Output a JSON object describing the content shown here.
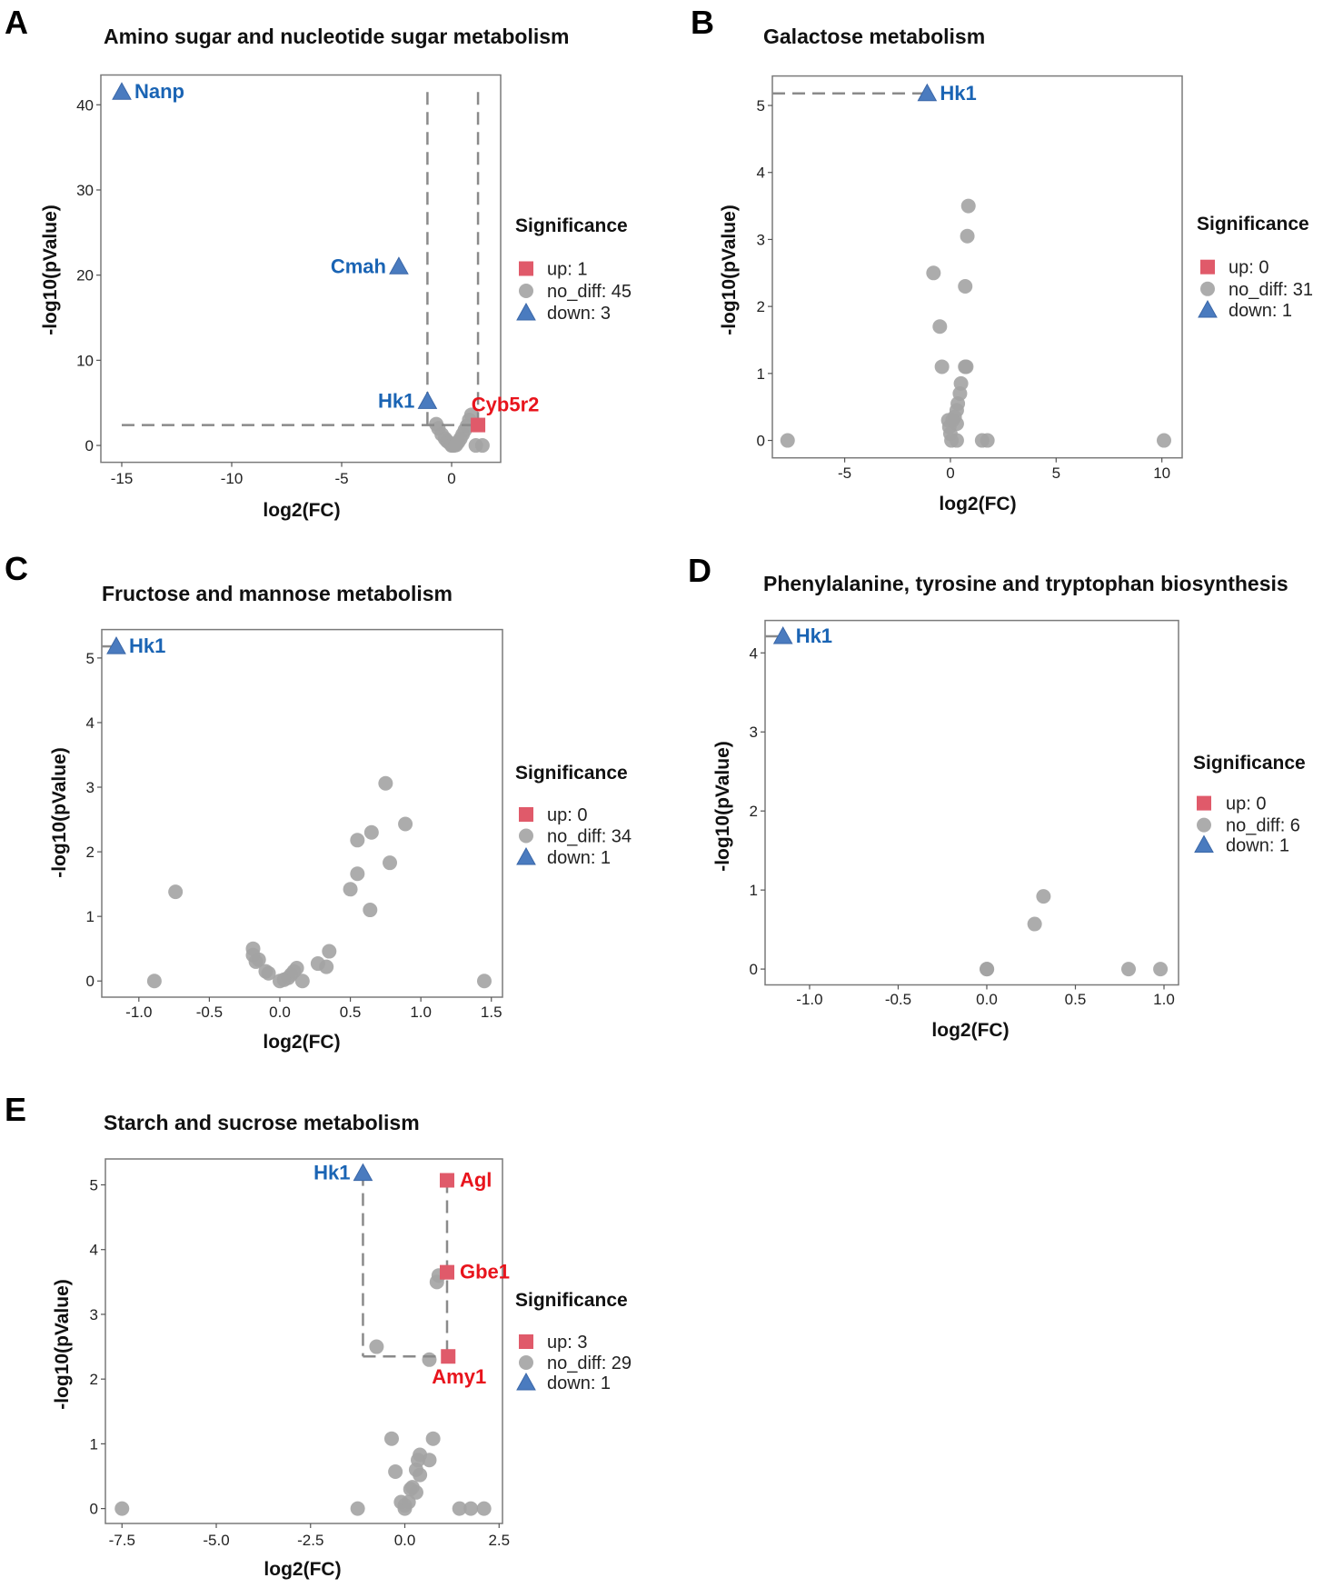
{
  "colors": {
    "up": "#e05a6a",
    "up_label": "#e8141c",
    "down": "#4a7bbf",
    "down_label": "#1a64b4",
    "no_diff": "#a3a3a3",
    "ref_line": "#8a8a8a"
  },
  "chart_data": [
    {
      "panel": "A",
      "type": "scatter",
      "title": "Amino sugar and nucleotide sugar metabolism",
      "xlabel": "log2(FC)",
      "ylabel": "-log10(pValue)",
      "xlim": [
        -15.95,
        2.23
      ],
      "ylim": [
        -1.98,
        43.5
      ],
      "xticks": [
        "-15",
        "-10",
        "-5",
        "0"
      ],
      "yticks": [
        "0",
        "10",
        "20",
        "30",
        "40"
      ],
      "legend": {
        "title": "Significance",
        "items": [
          "up: 1",
          "no_diff: 45",
          "down: 3"
        ]
      },
      "ref_lines": [
        [
          [
            -15,
            2.4
          ],
          [
            1.2,
            2.4
          ]
        ],
        [
          [
            -1.1,
            41.5
          ],
          [
            -1.1,
            2.4
          ]
        ],
        [
          [
            1.2,
            41.5
          ],
          [
            1.2,
            2.4
          ]
        ]
      ],
      "points": [
        {
          "x": -15,
          "y": 41.5,
          "group": "down",
          "label": "Nanp",
          "label_pos": "right"
        },
        {
          "x": -2.4,
          "y": 21,
          "group": "down",
          "label": "Cmah",
          "label_pos": "left"
        },
        {
          "x": -1.1,
          "y": 5.2,
          "group": "down",
          "label": "Hk1",
          "label_pos": "left"
        },
        {
          "x": 1.2,
          "y": 2.4,
          "group": "up",
          "label": "Cyb5r2",
          "label_pos": "above"
        },
        {
          "x": -0.7,
          "y": 2.5,
          "group": "no_diff"
        },
        {
          "x": -0.6,
          "y": 2.0,
          "group": "no_diff"
        },
        {
          "x": -0.45,
          "y": 1.3,
          "group": "no_diff"
        },
        {
          "x": -0.3,
          "y": 0.8,
          "group": "no_diff"
        },
        {
          "x": -0.2,
          "y": 0.5,
          "group": "no_diff"
        },
        {
          "x": -0.1,
          "y": 0.3,
          "group": "no_diff"
        },
        {
          "x": 0,
          "y": 0.1,
          "group": "no_diff"
        },
        {
          "x": 0,
          "y": 0,
          "group": "no_diff"
        },
        {
          "x": 0.1,
          "y": 0,
          "group": "no_diff"
        },
        {
          "x": 0.2,
          "y": 0.2,
          "group": "no_diff"
        },
        {
          "x": 0.3,
          "y": 0.4,
          "group": "no_diff"
        },
        {
          "x": 0.4,
          "y": 0.8,
          "group": "no_diff"
        },
        {
          "x": 0.5,
          "y": 1.3,
          "group": "no_diff"
        },
        {
          "x": 0.6,
          "y": 1.8,
          "group": "no_diff"
        },
        {
          "x": 0.7,
          "y": 2.3,
          "group": "no_diff"
        },
        {
          "x": 0.8,
          "y": 3.0,
          "group": "no_diff"
        },
        {
          "x": 0.9,
          "y": 3.6,
          "group": "no_diff"
        },
        {
          "x": 1.1,
          "y": 0,
          "group": "no_diff"
        },
        {
          "x": 1.4,
          "y": 0,
          "group": "no_diff"
        },
        {
          "x": 0.2,
          "y": 0.05,
          "group": "no_diff"
        }
      ]
    },
    {
      "panel": "B",
      "type": "scatter",
      "title": "Galactose metabolism",
      "xlabel": "log2(FC)",
      "ylabel": "-log10(pValue)",
      "xlim": [
        -8.42,
        10.96
      ],
      "ylim": [
        -0.26,
        5.44
      ],
      "xticks": [
        "-5",
        "0",
        "5",
        "10"
      ],
      "yticks": [
        "0",
        "1",
        "2",
        "3",
        "4",
        "5"
      ],
      "legend": {
        "title": "Significance",
        "items": [
          "up: 0",
          "no_diff: 31",
          "down: 1"
        ]
      },
      "ref_lines": [
        [
          [
            -8.42,
            5.18
          ],
          [
            -1.1,
            5.18
          ]
        ]
      ],
      "points": [
        {
          "x": -1.1,
          "y": 5.18,
          "group": "down",
          "label": "Hk1",
          "label_pos": "right"
        },
        {
          "x": -7.7,
          "y": 0,
          "group": "no_diff"
        },
        {
          "x": 0.85,
          "y": 3.5,
          "group": "no_diff"
        },
        {
          "x": 0.8,
          "y": 3.05,
          "group": "no_diff"
        },
        {
          "x": -0.8,
          "y": 2.5,
          "group": "no_diff"
        },
        {
          "x": 0.7,
          "y": 2.3,
          "group": "no_diff"
        },
        {
          "x": -0.5,
          "y": 1.7,
          "group": "no_diff"
        },
        {
          "x": -0.4,
          "y": 1.1,
          "group": "no_diff"
        },
        {
          "x": 0.7,
          "y": 1.1,
          "group": "no_diff"
        },
        {
          "x": 0.75,
          "y": 1.1,
          "group": "no_diff"
        },
        {
          "x": 0.5,
          "y": 0.85,
          "group": "no_diff"
        },
        {
          "x": 0.45,
          "y": 0.7,
          "group": "no_diff"
        },
        {
          "x": 0.35,
          "y": 0.55,
          "group": "no_diff"
        },
        {
          "x": 0.3,
          "y": 0.45,
          "group": "no_diff"
        },
        {
          "x": 0.2,
          "y": 0.35,
          "group": "no_diff"
        },
        {
          "x": 0.1,
          "y": 0.3,
          "group": "no_diff"
        },
        {
          "x": -0.1,
          "y": 0.3,
          "group": "no_diff"
        },
        {
          "x": -0.05,
          "y": 0.2,
          "group": "no_diff"
        },
        {
          "x": 0,
          "y": 0.1,
          "group": "no_diff"
        },
        {
          "x": 0.05,
          "y": 0,
          "group": "no_diff"
        },
        {
          "x": 0.3,
          "y": 0,
          "group": "no_diff"
        },
        {
          "x": 1.5,
          "y": 0,
          "group": "no_diff"
        },
        {
          "x": 1.75,
          "y": 0,
          "group": "no_diff"
        },
        {
          "x": 10.1,
          "y": 0,
          "group": "no_diff"
        },
        {
          "x": 0.3,
          "y": 0.25,
          "group": "no_diff"
        }
      ]
    },
    {
      "panel": "C",
      "type": "scatter",
      "title": "Fructose and mannose metabolism",
      "xlabel": "log2(FC)",
      "ylabel": "-log10(pValue)",
      "xlim": [
        -1.263,
        1.579
      ],
      "ylim": [
        -0.25,
        5.44
      ],
      "xticks": [
        "-1.0",
        "-0.5",
        "0.0",
        "0.5",
        "1.0",
        "1.5"
      ],
      "yticks": [
        "0",
        "1",
        "2",
        "3",
        "4",
        "5"
      ],
      "legend": {
        "title": "Significance",
        "items": [
          "up: 0",
          "no_diff: 34",
          "down: 1"
        ]
      },
      "ref_lines": [
        [
          [
            -1.263,
            5.18
          ],
          [
            -1.16,
            5.18
          ]
        ]
      ],
      "points": [
        {
          "x": -1.16,
          "y": 5.18,
          "group": "down",
          "label": "Hk1",
          "label_pos": "right"
        },
        {
          "x": -0.89,
          "y": 0,
          "group": "no_diff"
        },
        {
          "x": -0.74,
          "y": 1.38,
          "group": "no_diff"
        },
        {
          "x": -0.19,
          "y": 0.5,
          "group": "no_diff"
        },
        {
          "x": -0.19,
          "y": 0.4,
          "group": "no_diff"
        },
        {
          "x": -0.17,
          "y": 0.3,
          "group": "no_diff"
        },
        {
          "x": -0.15,
          "y": 0.33,
          "group": "no_diff"
        },
        {
          "x": -0.1,
          "y": 0.15,
          "group": "no_diff"
        },
        {
          "x": -0.08,
          "y": 0.12,
          "group": "no_diff"
        },
        {
          "x": 0,
          "y": 0,
          "group": "no_diff"
        },
        {
          "x": 0.03,
          "y": 0.02,
          "group": "no_diff"
        },
        {
          "x": 0.06,
          "y": 0.05,
          "group": "no_diff"
        },
        {
          "x": 0.08,
          "y": 0.1,
          "group": "no_diff"
        },
        {
          "x": 0.1,
          "y": 0.15,
          "group": "no_diff"
        },
        {
          "x": 0.12,
          "y": 0.2,
          "group": "no_diff"
        },
        {
          "x": 0.16,
          "y": 0,
          "group": "no_diff"
        },
        {
          "x": 0.27,
          "y": 0.27,
          "group": "no_diff"
        },
        {
          "x": 0.33,
          "y": 0.22,
          "group": "no_diff"
        },
        {
          "x": 0.35,
          "y": 0.46,
          "group": "no_diff"
        },
        {
          "x": 0.5,
          "y": 1.42,
          "group": "no_diff"
        },
        {
          "x": 0.55,
          "y": 1.66,
          "group": "no_diff"
        },
        {
          "x": 0.55,
          "y": 2.18,
          "group": "no_diff"
        },
        {
          "x": 0.64,
          "y": 1.1,
          "group": "no_diff"
        },
        {
          "x": 0.65,
          "y": 2.3,
          "group": "no_diff"
        },
        {
          "x": 0.75,
          "y": 3.06,
          "group": "no_diff"
        },
        {
          "x": 0.78,
          "y": 1.83,
          "group": "no_diff"
        },
        {
          "x": 0.89,
          "y": 2.43,
          "group": "no_diff"
        },
        {
          "x": 1.45,
          "y": 0,
          "group": "no_diff"
        }
      ]
    },
    {
      "panel": "D",
      "type": "scatter",
      "title": "Phenylalanine, tyrosine and tryptophan biosynthesis",
      "xlabel": "log2(FC)",
      "ylabel": "-log10(pValue)",
      "xlim": [
        -1.251,
        1.082
      ],
      "ylim": [
        -0.2,
        4.41
      ],
      "xticks": [
        "-1.0",
        "-0.5",
        "0.0",
        "0.5",
        "1.0"
      ],
      "yticks": [
        "0",
        "1",
        "2",
        "3",
        "4"
      ],
      "legend": {
        "title": "Significance",
        "items": [
          "up: 0",
          "no_diff: 6",
          "down: 1"
        ]
      },
      "ref_lines": [
        [
          [
            -1.251,
            4.21
          ],
          [
            -1.15,
            4.21
          ]
        ]
      ],
      "points": [
        {
          "x": -1.15,
          "y": 4.21,
          "group": "down",
          "label": "Hk1",
          "label_pos": "right"
        },
        {
          "x": 0,
          "y": 0,
          "group": "no_diff"
        },
        {
          "x": 0.001,
          "y": 0,
          "group": "no_diff"
        },
        {
          "x": 0.27,
          "y": 0.57,
          "group": "no_diff"
        },
        {
          "x": 0.32,
          "y": 0.92,
          "group": "no_diff"
        },
        {
          "x": 0.8,
          "y": 0,
          "group": "no_diff"
        },
        {
          "x": 0.98,
          "y": 0,
          "group": "no_diff"
        }
      ]
    },
    {
      "panel": "E",
      "type": "scatter",
      "title": "Starch and sucrose metabolism",
      "xlabel": "log2(FC)",
      "ylabel": "-log10(pValue)",
      "xlim": [
        -7.94,
        2.59
      ],
      "ylim": [
        -0.23,
        5.4
      ],
      "xticks": [
        "-7.5",
        "-5.0",
        "-2.5",
        "0.0",
        "2.5"
      ],
      "yticks": [
        "0",
        "1",
        "2",
        "3",
        "4",
        "5"
      ],
      "legend": {
        "title": "Significance",
        "items": [
          "up: 3",
          "no_diff: 29",
          "down: 1"
        ]
      },
      "ref_lines": [
        [
          [
            -1.11,
            5.18
          ],
          [
            -1.11,
            2.35
          ]
        ],
        [
          [
            -1.11,
            2.35
          ],
          [
            1.12,
            2.35
          ]
        ],
        [
          [
            1.12,
            5.07
          ],
          [
            1.12,
            2.35
          ]
        ]
      ],
      "points": [
        {
          "x": -1.11,
          "y": 5.18,
          "group": "down",
          "label": "Hk1",
          "label_pos": "left"
        },
        {
          "x": 1.12,
          "y": 5.07,
          "group": "up",
          "label": "Agl",
          "label_pos": "right"
        },
        {
          "x": 1.12,
          "y": 3.65,
          "group": "up",
          "label": "Gbe1",
          "label_pos": "right"
        },
        {
          "x": 1.15,
          "y": 2.35,
          "group": "up",
          "label": "Amy1",
          "label_pos": "below"
        },
        {
          "x": -7.5,
          "y": 0,
          "group": "no_diff"
        },
        {
          "x": -1.25,
          "y": 0,
          "group": "no_diff"
        },
        {
          "x": -0.75,
          "y": 2.5,
          "group": "no_diff"
        },
        {
          "x": 0.65,
          "y": 2.3,
          "group": "no_diff"
        },
        {
          "x": 0.9,
          "y": 3.6,
          "group": "no_diff"
        },
        {
          "x": 0.85,
          "y": 3.5,
          "group": "no_diff"
        },
        {
          "x": -0.35,
          "y": 1.08,
          "group": "no_diff"
        },
        {
          "x": 0.75,
          "y": 1.08,
          "group": "no_diff"
        },
        {
          "x": -0.25,
          "y": 0.57,
          "group": "no_diff"
        },
        {
          "x": 0.3,
          "y": 0.6,
          "group": "no_diff"
        },
        {
          "x": 0.35,
          "y": 0.75,
          "group": "no_diff"
        },
        {
          "x": 0.4,
          "y": 0.83,
          "group": "no_diff"
        },
        {
          "x": 0.65,
          "y": 0.75,
          "group": "no_diff"
        },
        {
          "x": 0.4,
          "y": 0.52,
          "group": "no_diff"
        },
        {
          "x": 0.15,
          "y": 0.3,
          "group": "no_diff"
        },
        {
          "x": 0.2,
          "y": 0.33,
          "group": "no_diff"
        },
        {
          "x": 0.3,
          "y": 0.25,
          "group": "no_diff"
        },
        {
          "x": -0.1,
          "y": 0.1,
          "group": "no_diff"
        },
        {
          "x": 0,
          "y": 0.05,
          "group": "no_diff"
        },
        {
          "x": 0,
          "y": 0,
          "group": "no_diff"
        },
        {
          "x": 0.1,
          "y": 0.1,
          "group": "no_diff"
        },
        {
          "x": 1.45,
          "y": 0,
          "group": "no_diff"
        },
        {
          "x": 1.75,
          "y": 0,
          "group": "no_diff"
        },
        {
          "x": 2.1,
          "y": 0,
          "group": "no_diff"
        }
      ]
    }
  ]
}
